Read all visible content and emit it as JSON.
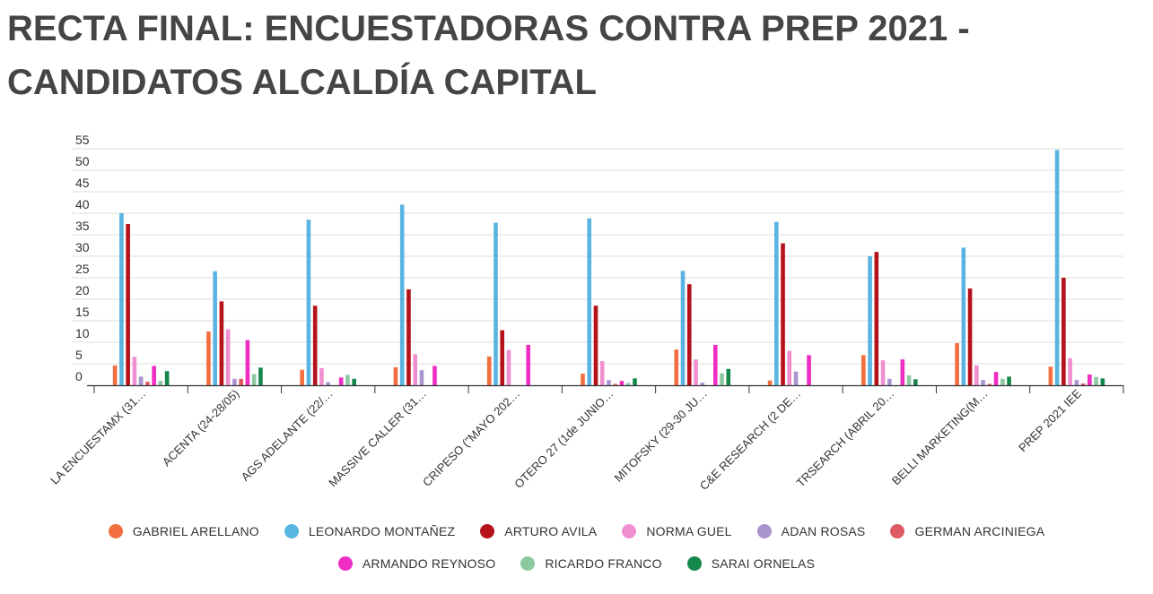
{
  "chart_data": {
    "type": "bar",
    "title": "RECTA FINAL: ENCUESTADORAS CONTRA PREP 2021 - CANDIDATOS ALCALDÍA CAPITAL",
    "xlabel": "",
    "ylabel": "",
    "ylim": [
      0,
      55
    ],
    "yticks": [
      0,
      5,
      10,
      15,
      20,
      25,
      30,
      35,
      40,
      45,
      50,
      55
    ],
    "legend_position": "bottom",
    "categories": [
      "LA ENCUESTAMX (31…",
      "ACENTA (24-28/05)",
      "AGS ADELANTE (22/…",
      "MASSIVE CALLER (31…",
      "CRIPESO (\"MAYO 202…",
      "OTERO 27 (1de JUNIO…",
      "MITOFSKY (29-30 JU…",
      "C&E RESEARCH (2 DE…",
      "TRSEARCH (ABRIL 20…",
      "BELLI MARKETING(M…",
      "PREP 2021 IEE"
    ],
    "series": [
      {
        "name": "GABRIEL ARELLANO",
        "color": "#f26f3f",
        "values": [
          4.6,
          12.5,
          3.6,
          4.2,
          6.7,
          2.7,
          8.3,
          1.1,
          7.0,
          9.8,
          4.3
        ]
      },
      {
        "name": "LEONARDO MONTAÑEZ",
        "color": "#5ab4e1",
        "values": [
          40.0,
          26.5,
          38.5,
          42.0,
          37.8,
          38.8,
          26.6,
          38.0,
          30.0,
          32.0,
          54.7
        ]
      },
      {
        "name": "ARTURO AVILA",
        "color": "#b5121b",
        "values": [
          37.5,
          19.5,
          18.5,
          22.3,
          12.8,
          18.5,
          23.5,
          33.0,
          31.0,
          22.5,
          25.0
        ]
      },
      {
        "name": "NORMA GUEL",
        "color": "#f08fd0",
        "values": [
          6.6,
          13.0,
          4.0,
          7.2,
          8.2,
          5.6,
          6.0,
          8.0,
          5.8,
          4.6,
          6.3
        ]
      },
      {
        "name": "ADAN ROSAS",
        "color": "#a994cf",
        "values": [
          2.0,
          1.5,
          0.7,
          3.5,
          0,
          1.2,
          0.6,
          3.2,
          1.5,
          1.2,
          1.2
        ]
      },
      {
        "name": "GERMAN ARCINIEGA",
        "color": "#dd5a63",
        "values": [
          0.8,
          1.5,
          0,
          0,
          0,
          0.3,
          0,
          0,
          0,
          0.3,
          0.4
        ]
      },
      {
        "name": "ARMANDO REYNOSO",
        "color": "#f02dc3",
        "values": [
          4.5,
          10.5,
          1.8,
          4.5,
          9.4,
          1.0,
          9.4,
          7.0,
          6.0,
          3.1,
          2.5
        ]
      },
      {
        "name": "RICARDO FRANCO",
        "color": "#8cc9a1",
        "values": [
          1.0,
          2.6,
          2.4,
          0,
          0,
          0.5,
          2.8,
          0,
          2.3,
          1.5,
          1.9
        ]
      },
      {
        "name": "SARAI ORNELAS",
        "color": "#15874a",
        "values": [
          3.3,
          4.1,
          1.5,
          0,
          0,
          1.6,
          3.8,
          0,
          1.4,
          2.0,
          1.6
        ]
      }
    ]
  }
}
